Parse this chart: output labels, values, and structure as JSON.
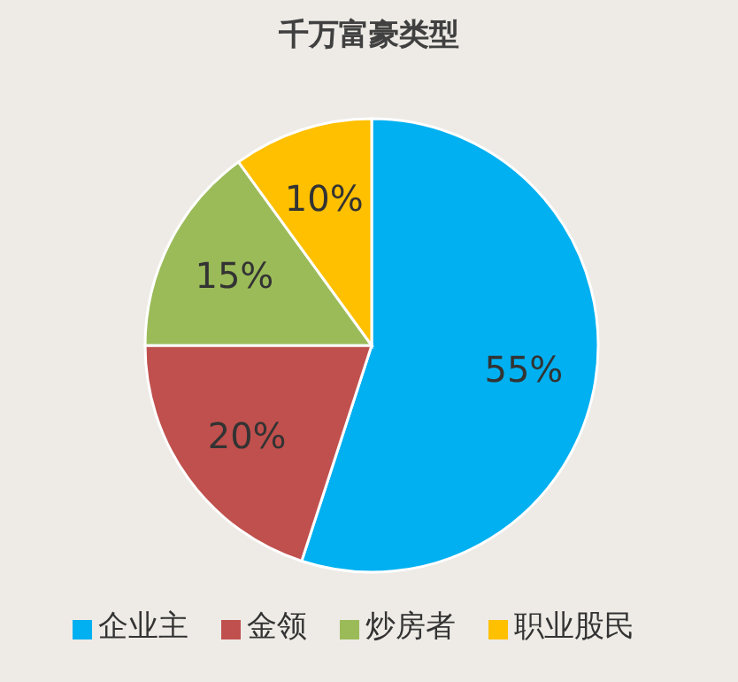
{
  "chart_data": {
    "type": "pie",
    "title": "千万富豪类型",
    "categories": [
      "企业主",
      "金领",
      "炒房者",
      "职业股民"
    ],
    "values": [
      55,
      20,
      15,
      10
    ],
    "colors": [
      "#00b0f0",
      "#c0504d",
      "#9bbb59",
      "#ffc000"
    ],
    "value_labels": [
      "55%",
      "20%",
      "15%",
      "10%"
    ],
    "legend": "bottom"
  }
}
